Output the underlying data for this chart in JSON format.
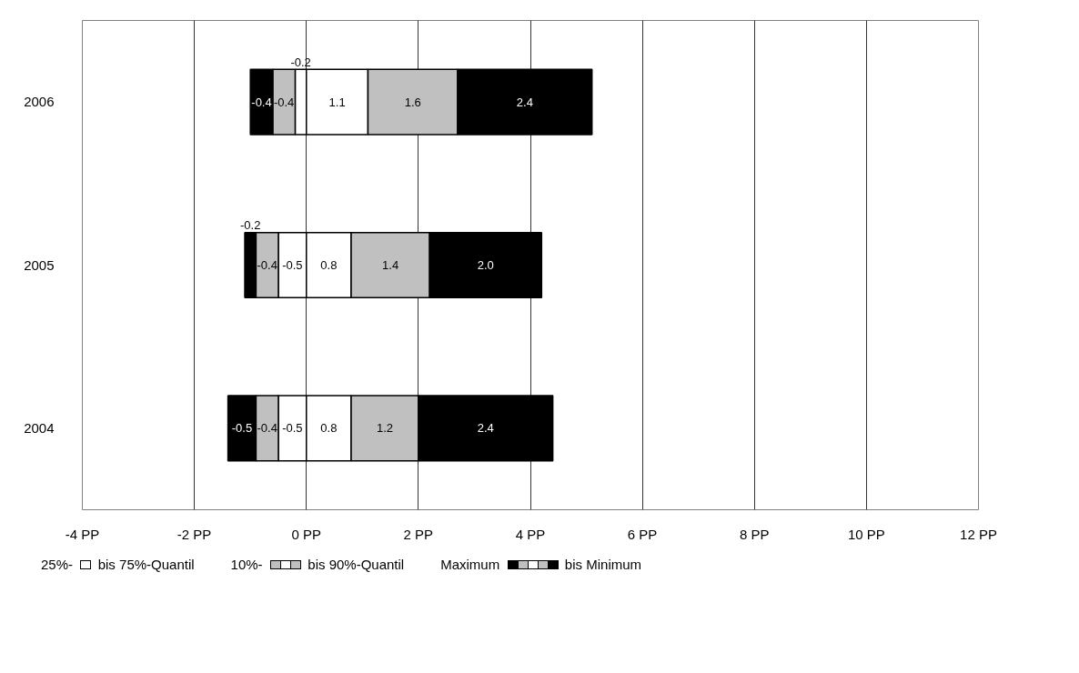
{
  "chart_data": {
    "type": "bar",
    "orientation": "horizontal",
    "stacked": true,
    "categories": [
      "2006",
      "2005",
      "2004"
    ],
    "series": [
      {
        "color": "#ffffff",
        "values": [
          -0.2,
          -0.5,
          -0.5
        ],
        "value_labels": [
          "-0.2",
          "-0.5",
          "-0.5"
        ]
      },
      {
        "color": "#ffffff",
        "values": [
          1.1,
          0.8,
          0.8
        ],
        "value_labels": [
          "1.1",
          "0.8",
          "0.8"
        ]
      },
      {
        "color": "#c0c0c0",
        "values": [
          -0.4,
          -0.4,
          -0.4
        ],
        "value_labels": [
          "-0.4",
          "-0.4",
          "-0.4"
        ]
      },
      {
        "color": "#c0c0c0",
        "values": [
          1.6,
          1.4,
          1.2
        ],
        "value_labels": [
          "1.6",
          "1.4",
          "1.2"
        ]
      },
      {
        "color": "#000000",
        "values": [
          -0.4,
          -0.2,
          -0.5
        ],
        "value_labels": [
          "-0.4",
          "-0.2",
          "-0.5"
        ]
      },
      {
        "color": "#000000",
        "values": [
          2.4,
          2.0,
          2.4
        ],
        "value_labels": [
          "2.4",
          "2.0",
          "2.4"
        ]
      }
    ],
    "xlim": [
      -4,
      12
    ],
    "xticks": [
      {
        "value": -4,
        "label": "-4 PP"
      },
      {
        "value": -2,
        "label": "-2 PP"
      },
      {
        "value": 0,
        "label": "0 PP"
      },
      {
        "value": 2,
        "label": "2 PP"
      },
      {
        "value": 4,
        "label": "4 PP"
      },
      {
        "value": 6,
        "label": "6 PP"
      },
      {
        "value": 8,
        "label": "8 PP"
      },
      {
        "value": 10,
        "label": "10 PP"
      },
      {
        "value": 12,
        "label": "12 PP"
      }
    ],
    "grid": "x",
    "annotations": [
      "25%-",
      "bis 75%-Quantil",
      "10%-",
      "bis 90%-Quantil",
      "Maximum",
      "bis Minimum"
    ]
  }
}
